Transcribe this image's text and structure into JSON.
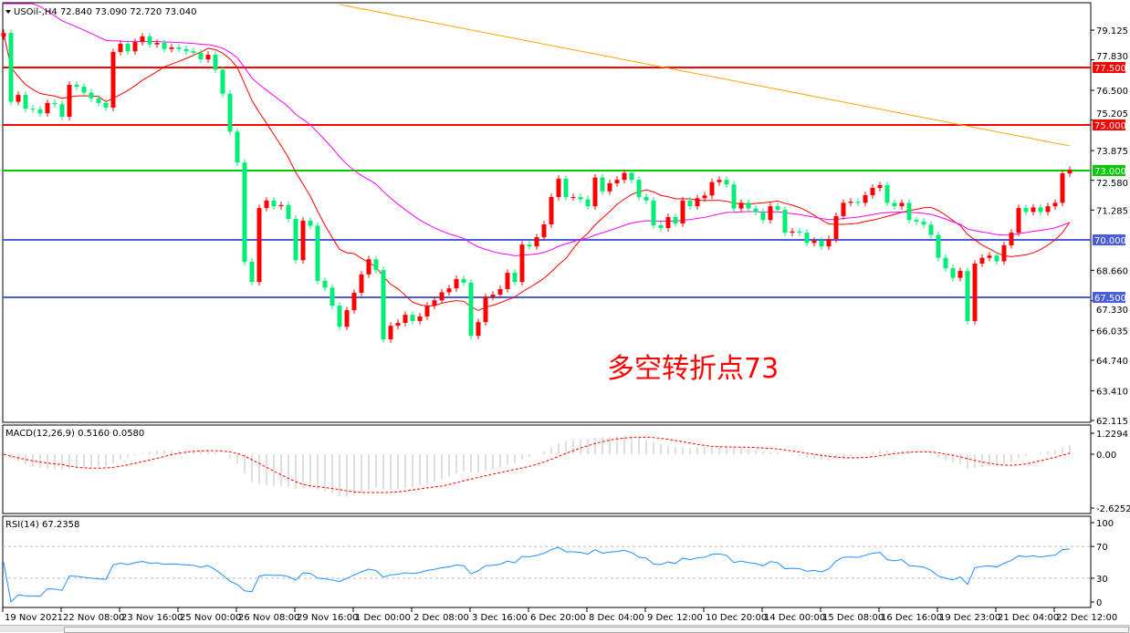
{
  "header": {
    "symbol_info": "USOil-,H4  72.840 73.090 72.720 73.040"
  },
  "annotation": "多空转折点73",
  "colors": {
    "bull": "#ff0000",
    "bear": "#00ee76",
    "ma_fast": "#ff0000",
    "ma_slow": "#ff00ff",
    "ma_long": "#ffa500",
    "resistance": "#ff0000",
    "pivot": "#00cc00",
    "support": "#4a5ddb",
    "rsi": "#1e90ff",
    "macd_hist": "#c0c0c0",
    "macd_signal": "#ff0000"
  },
  "chart_data": {
    "type": "candlestick",
    "symbol": "USOil-",
    "timeframe": "H4",
    "ylim": [
      62.115,
      79.125
    ],
    "y_ticks": [
      "79.125",
      "77.830",
      "76.500",
      "75.205",
      "73.875",
      "72.580",
      "71.285",
      "68.660",
      "67.330",
      "66.035",
      "64.740",
      "63.410",
      "62.115"
    ],
    "x_ticks": [
      "19 Nov 2021",
      "22 Nov 08:00",
      "23 Nov 16:00",
      "25 Nov 00:00",
      "26 Nov 08:00",
      "29 Nov 16:00",
      "1 Dec 00:00",
      "2 Dec 08:00",
      "3 Dec 16:00",
      "6 Dec 20:00",
      "8 Dec 04:00",
      "9 Dec 12:00",
      "10 Dec 20:00",
      "14 Dec 00:00",
      "15 Dec 08:00",
      "16 Dec 16:00",
      "19 Dec 23:00",
      "21 Dec 04:00",
      "22 Dec 12:00"
    ],
    "first_open": 78.85,
    "close": [
      79.0,
      76.0,
      76.3,
      75.7,
      75.67,
      75.5,
      75.95,
      75.9,
      75.35,
      76.74,
      76.66,
      76.4,
      76.15,
      75.95,
      75.75,
      78.17,
      78.53,
      78.2,
      78.6,
      78.85,
      78.5,
      78.57,
      78.3,
      78.37,
      78.3,
      78.2,
      78.13,
      77.85,
      78.05,
      77.4,
      76.35,
      74.7,
      73.35,
      69.03,
      68.15,
      71.37,
      71.7,
      71.45,
      71.5,
      70.9,
      69.1,
      70.82,
      70.6,
      68.2,
      67.9,
      67.12,
      66.2,
      66.92,
      67.68,
      68.48,
      69.14,
      68.67,
      65.65,
      66.24,
      66.37,
      66.72,
      66.45,
      66.65,
      67.12,
      67.35,
      67.7,
      67.87,
      68.28,
      68.12,
      65.8,
      66.4,
      67.5,
      67.6,
      67.84,
      68.55,
      68.15,
      69.78,
      69.7,
      70.1,
      70.66,
      71.85,
      72.65,
      71.85,
      71.85,
      71.75,
      71.45,
      72.7,
      72.1,
      72.45,
      72.6,
      72.9,
      72.6,
      71.85,
      71.7,
      70.62,
      70.5,
      70.98,
      70.7,
      71.7,
      71.45,
      71.8,
      71.92,
      72.5,
      72.6,
      72.4,
      71.35,
      71.6,
      71.35,
      71.2,
      70.85,
      71.45,
      71.3,
      70.3,
      70.35,
      70.3,
      69.85,
      69.95,
      69.7,
      70.02,
      71.02,
      71.6,
      71.65,
      71.6,
      71.93,
      72.25,
      72.37,
      71.6,
      71.45,
      71.6,
      70.85,
      70.78,
      70.65,
      70.2,
      69.2,
      68.75,
      68.33,
      68.63,
      66.45,
      68.95,
      69.2,
      69.3,
      69.05,
      69.75,
      70.3,
      71.37,
      71.2,
      71.4,
      71.2,
      71.45,
      71.6,
      72.88,
      73.04
    ],
    "long_ma_endpoints": [
      {
        "bar": 46,
        "price": 80.24
      },
      {
        "bar": 146,
        "price": 74.08
      }
    ],
    "levels": [
      {
        "price": 77.5,
        "label": "77.500",
        "kind": "resistance"
      },
      {
        "price": 75.0,
        "label": "75.000",
        "kind": "resistance"
      },
      {
        "price": 73.0,
        "label": "73.000",
        "kind": "pivot"
      },
      {
        "price": 70.0,
        "label": "70.000",
        "kind": "support"
      },
      {
        "price": 67.5,
        "label": "67.500",
        "kind": "support"
      }
    ],
    "macd": {
      "label": "MACD(12,26,9) 0.5160 0.0580",
      "ticks": [
        "1.2294",
        "0.00",
        "-2.6252"
      ],
      "range": [
        -2.6252,
        1.2294
      ]
    },
    "rsi": {
      "label": "RSI(14) 67.2358",
      "ticks": [
        "100",
        "70",
        "30",
        "0"
      ],
      "levels": [
        70,
        30
      ]
    }
  }
}
